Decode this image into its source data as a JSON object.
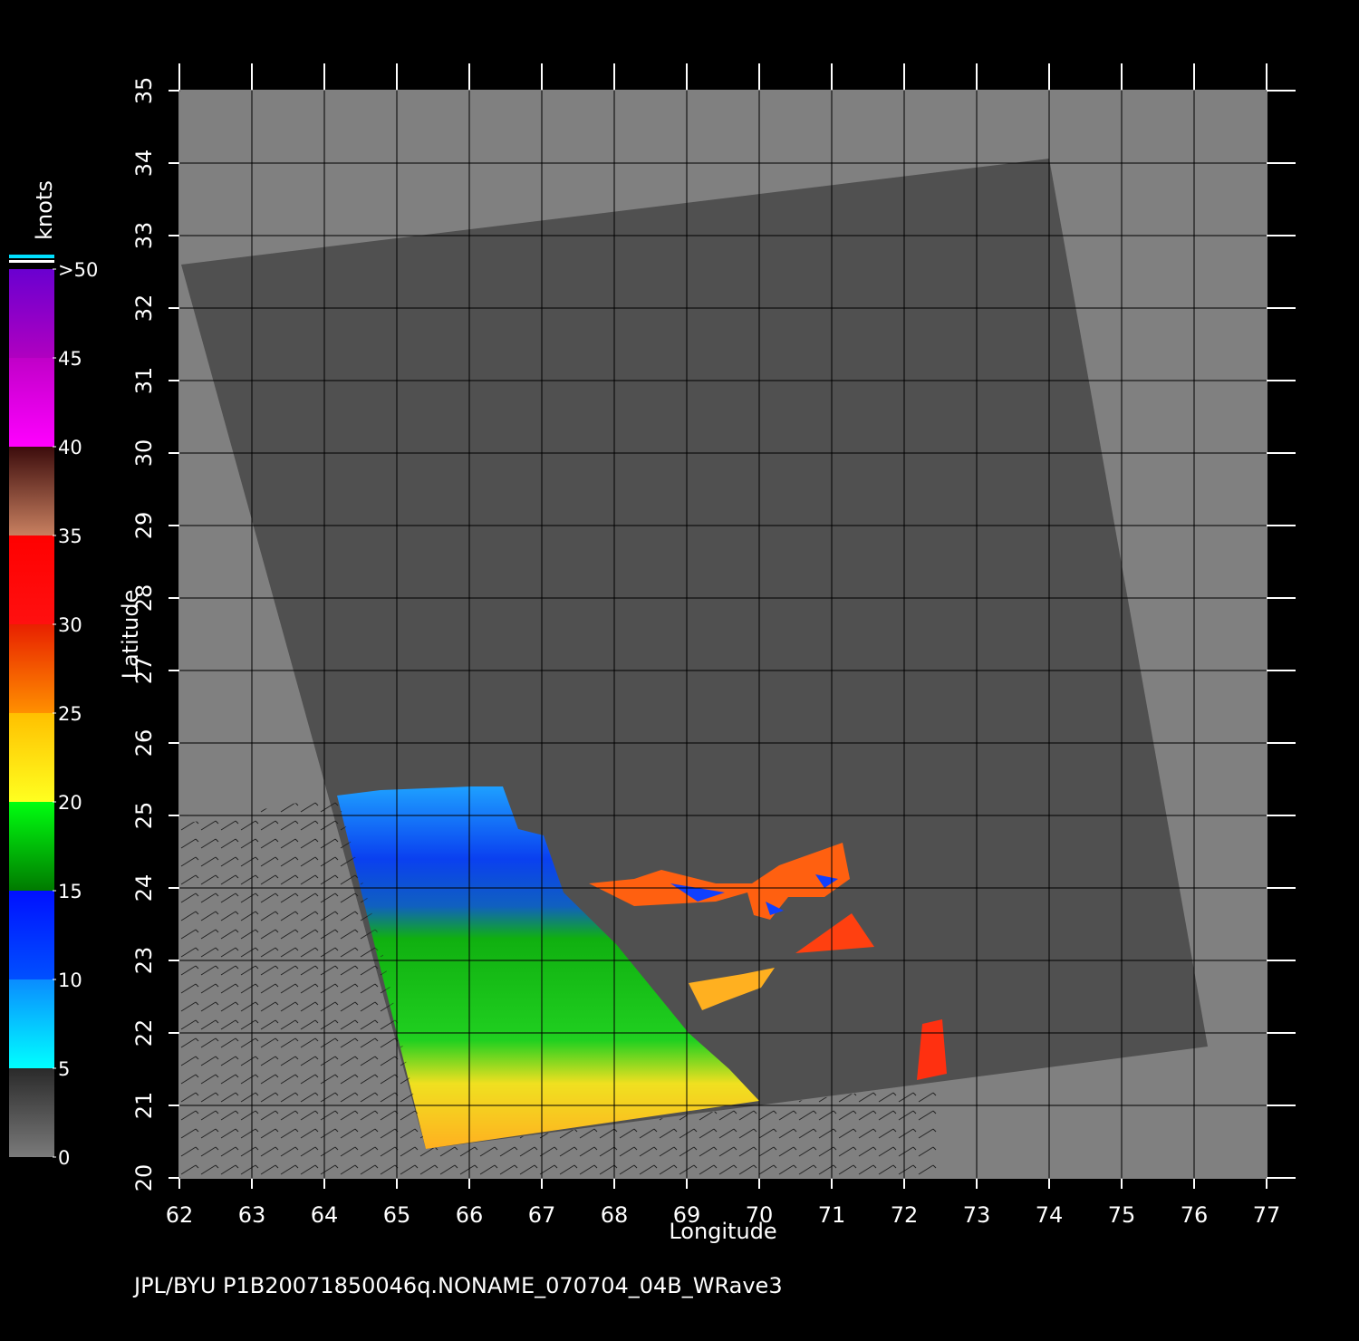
{
  "chart_data": {
    "type": "map",
    "xlabel": "Longitude",
    "ylabel": "Latitude",
    "footer": "JPL/BYU  P1B20071850046q.NONAME_070704_04B_WRave3",
    "xlim": [
      62,
      77
    ],
    "ylim": [
      20,
      35
    ],
    "xticks": [
      62,
      63,
      64,
      65,
      66,
      67,
      68,
      69,
      70,
      71,
      72,
      73,
      74,
      75,
      76,
      77
    ],
    "yticks": [
      20,
      21,
      22,
      23,
      24,
      25,
      26,
      27,
      28,
      29,
      30,
      31,
      32,
      33,
      34,
      35
    ],
    "grid": true,
    "colorbar": {
      "label": "knots",
      "lim": [
        0,
        50
      ],
      "ticks": [
        0,
        5,
        10,
        15,
        20,
        25,
        30,
        35,
        40,
        45,
        {
          "value": 50,
          "label": ">50"
        }
      ],
      "colors": [
        [
          "#7a7a7a",
          "#2a2a2a"
        ],
        [
          "#00ffff",
          "#0a8cff"
        ],
        [
          "#0050ff",
          "#0010ff"
        ],
        [
          "#007a00",
          "#00ff10"
        ],
        [
          "#ffff20",
          "#ffc000"
        ],
        [
          "#ff9000",
          "#e82000"
        ],
        [
          "#ff1010",
          "#ff0000"
        ],
        [
          "#c88060",
          "#3c0c0c"
        ],
        [
          "#ff00ff",
          "#c000c8"
        ],
        [
          "#b000c0",
          "#6a00d0"
        ]
      ]
    }
  }
}
